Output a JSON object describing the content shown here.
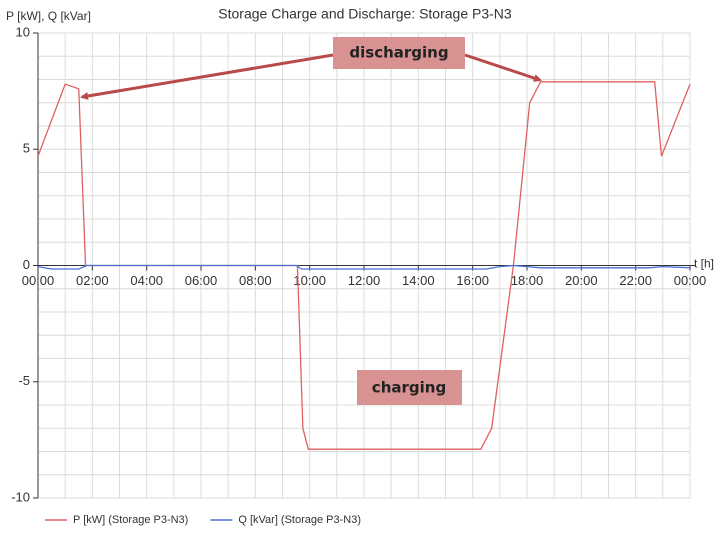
{
  "chart_data": {
    "type": "line",
    "title": "Storage Charge and Discharge: Storage P3-N3",
    "y_label": "P [kW], Q [kVar]",
    "x_label": "t [h]",
    "xlim": [
      0,
      24
    ],
    "xticks": [
      {
        "value": 0,
        "label": "00:00"
      },
      {
        "value": 2,
        "label": "02:00"
      },
      {
        "value": 4,
        "label": "04:00"
      },
      {
        "value": 6,
        "label": "06:00"
      },
      {
        "value": 8,
        "label": "08:00"
      },
      {
        "value": 10,
        "label": "10:00"
      },
      {
        "value": 12,
        "label": "12:00"
      },
      {
        "value": 14,
        "label": "14:00"
      },
      {
        "value": 16,
        "label": "16:00"
      },
      {
        "value": 18,
        "label": "18:00"
      },
      {
        "value": 20,
        "label": "20:00"
      },
      {
        "value": 22,
        "label": "22:00"
      },
      {
        "value": 24,
        "label": "00:00"
      }
    ],
    "xminorticks": [
      1,
      3,
      5,
      7,
      9,
      11,
      13,
      15,
      17,
      19,
      21,
      23
    ],
    "ylim": [
      -10,
      10
    ],
    "yticks": [
      -10,
      -5,
      0,
      5,
      10
    ],
    "yminorticks": [
      -9,
      -8,
      -7,
      -6,
      -4,
      -3,
      -2,
      -1,
      1,
      2,
      3,
      4,
      6,
      7,
      8,
      9
    ],
    "grid": true,
    "series": [
      {
        "name": "P [kW] (Storage P3-N3)",
        "color": "#e06060",
        "x": [
          0,
          1,
          1.5,
          1.75,
          9.55,
          9.75,
          9.95,
          16.3,
          16.7,
          17.5,
          18.1,
          18.5,
          22.7,
          22.95,
          24
        ],
        "values": [
          4.7,
          7.8,
          7.6,
          0,
          0,
          -7,
          -7.9,
          -7.9,
          -7,
          0,
          7,
          7.9,
          7.9,
          4.7,
          7.8
        ]
      },
      {
        "name": "Q [kVar] (Storage P3-N3)",
        "color": "#4a6fd8",
        "x": [
          0,
          0.5,
          1.5,
          1.8,
          9.5,
          9.7,
          16.5,
          17.0,
          17.5,
          18.5,
          22.5,
          23,
          24
        ],
        "values": [
          -0.05,
          -0.15,
          -0.15,
          0,
          0,
          -0.15,
          -0.15,
          -0.05,
          0,
          -0.1,
          -0.1,
          -0.05,
          -0.1
        ]
      }
    ],
    "annotations": [
      {
        "text": "discharging"
      },
      {
        "text": "charging"
      }
    ]
  }
}
